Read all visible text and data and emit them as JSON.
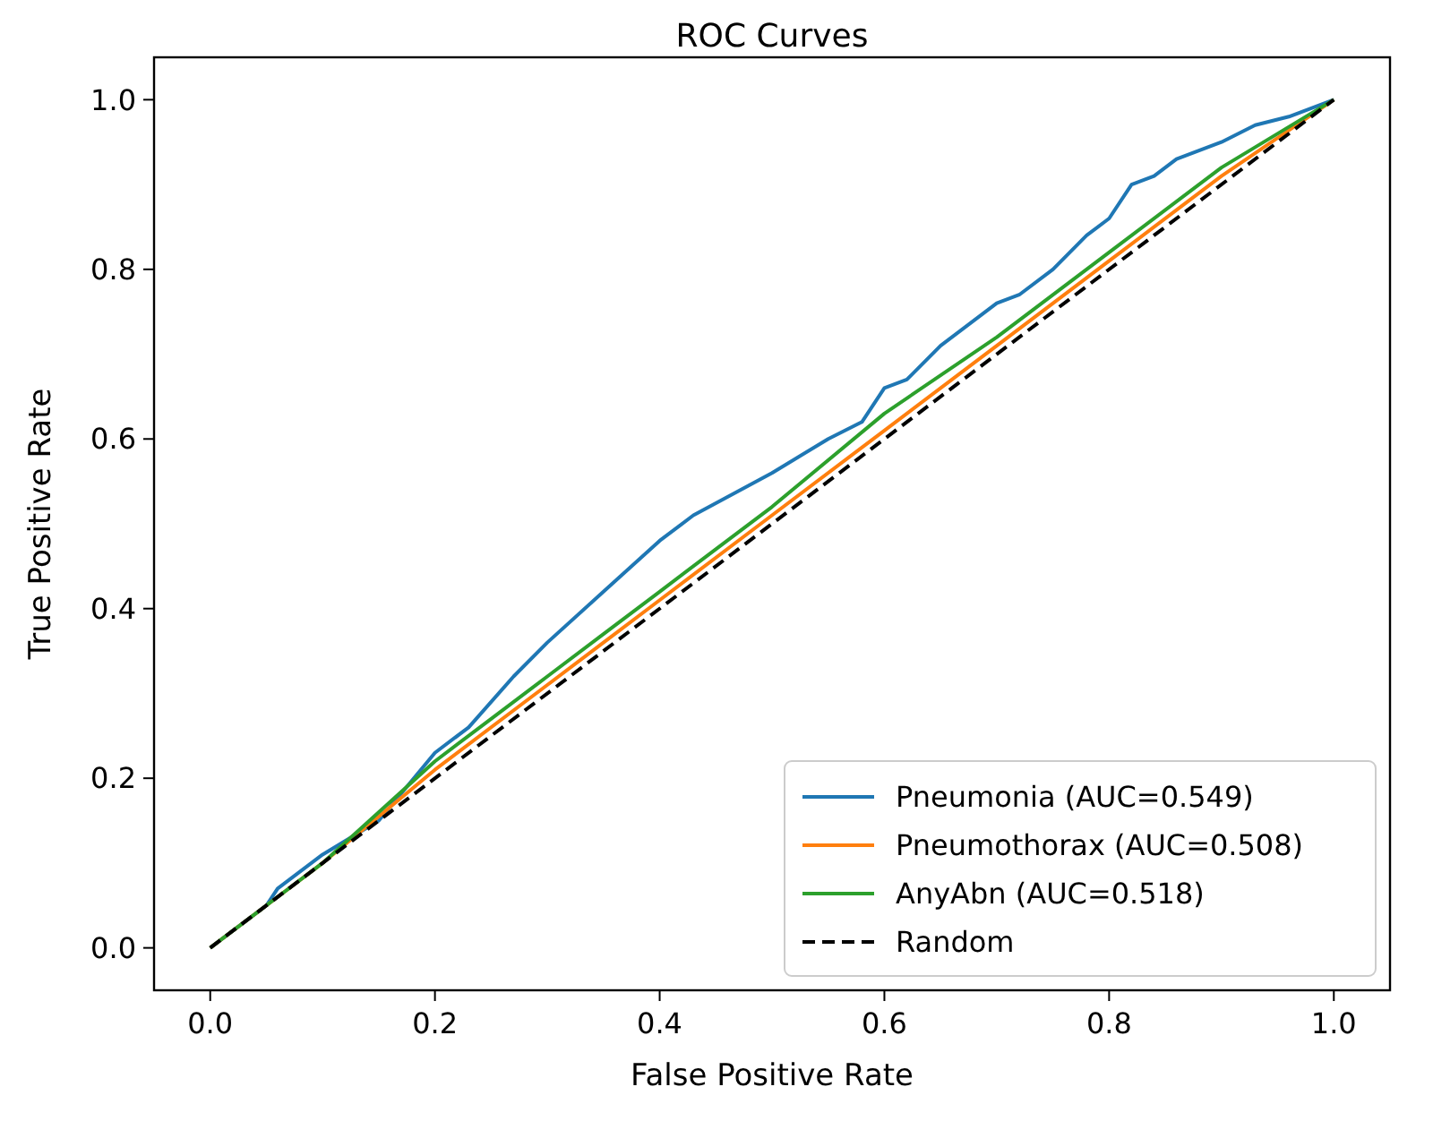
{
  "chart_data": {
    "type": "line",
    "title": "ROC Curves",
    "xlabel": "False Positive Rate",
    "ylabel": "True Positive Rate",
    "xlim": [
      -0.05,
      1.05
    ],
    "ylim": [
      -0.05,
      1.05
    ],
    "xticks": [
      {
        "value": 0,
        "label": "0.0"
      },
      {
        "value": 0.2,
        "label": "0.2"
      },
      {
        "value": 0.4,
        "label": "0.4"
      },
      {
        "value": 0.6,
        "label": "0.6"
      },
      {
        "value": 0.8,
        "label": "0.8"
      },
      {
        "value": 1,
        "label": "1.0"
      }
    ],
    "yticks": [
      {
        "value": 0,
        "label": "0.0"
      },
      {
        "value": 0.2,
        "label": "0.2"
      },
      {
        "value": 0.4,
        "label": "0.4"
      },
      {
        "value": 0.6,
        "label": "0.6"
      },
      {
        "value": 0.8,
        "label": "0.8"
      },
      {
        "value": 1,
        "label": "1.0"
      }
    ],
    "grid": false,
    "legend": "bottom right",
    "marker": "none",
    "series": [
      {
        "name": "Pneumonia (AUC=0.549)",
        "color": "#1f77b4",
        "x": [
          0,
          0.02,
          0.05,
          0.06,
          0.1,
          0.15,
          0.2,
          0.23,
          0.27,
          0.3,
          0.35,
          0.4,
          0.43,
          0.5,
          0.55,
          0.58,
          0.6,
          0.62,
          0.65,
          0.7,
          0.72,
          0.75,
          0.78,
          0.8,
          0.82,
          0.84,
          0.86,
          0.88,
          0.9,
          0.93,
          0.96,
          1
        ],
        "values": [
          0,
          0.02,
          0.05,
          0.07,
          0.11,
          0.15,
          0.23,
          0.26,
          0.32,
          0.36,
          0.42,
          0.48,
          0.51,
          0.56,
          0.6,
          0.62,
          0.66,
          0.67,
          0.71,
          0.76,
          0.77,
          0.8,
          0.84,
          0.86,
          0.9,
          0.91,
          0.93,
          0.94,
          0.95,
          0.97,
          0.98,
          1
        ]
      },
      {
        "name": "Pneumothorax (AUC=0.508)",
        "color": "#ff7f0e",
        "x": [
          0,
          0.05,
          0.1,
          0.2,
          0.3,
          0.35,
          0.4,
          0.5,
          0.6,
          0.7,
          0.8,
          0.9,
          1
        ],
        "values": [
          0,
          0.05,
          0.1,
          0.21,
          0.31,
          0.36,
          0.41,
          0.51,
          0.61,
          0.71,
          0.81,
          0.91,
          1
        ]
      },
      {
        "name": "AnyAbn (AUC=0.518)",
        "color": "#2ca02c",
        "x": [
          0,
          0.05,
          0.1,
          0.2,
          0.25,
          0.3,
          0.35,
          0.4,
          0.45,
          0.5,
          0.6,
          0.7,
          0.8,
          0.9,
          1
        ],
        "values": [
          0,
          0.05,
          0.1,
          0.22,
          0.27,
          0.32,
          0.37,
          0.42,
          0.47,
          0.52,
          0.63,
          0.72,
          0.82,
          0.92,
          1
        ]
      },
      {
        "name": "Random",
        "color": "#000000",
        "line_style": "dashed",
        "x": [
          0,
          1
        ],
        "values": [
          0,
          1
        ]
      }
    ]
  }
}
